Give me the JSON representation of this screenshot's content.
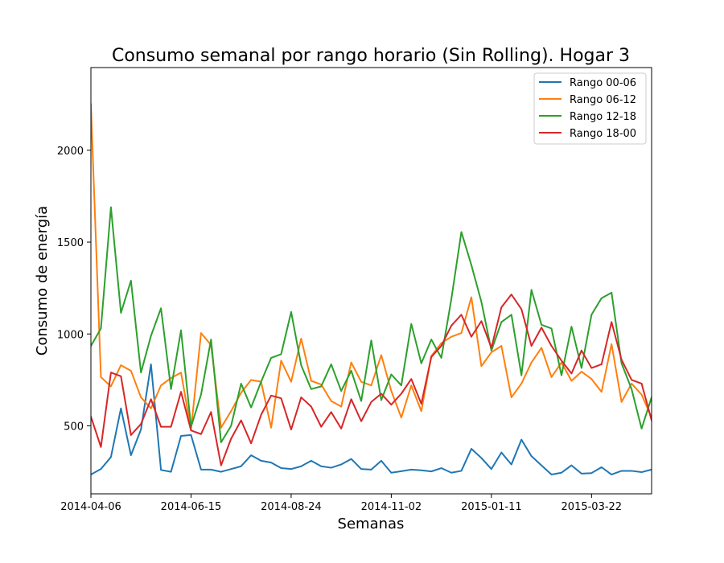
{
  "chart_data": {
    "type": "line",
    "title": "Consumo semanal por rango horario (Sin Rolling). Hogar 3",
    "xlabel": "Semanas",
    "ylabel": "Consumo de energía",
    "x_start": "2014-04-06",
    "x_step_days": 7,
    "x_ticks": [
      "2014-04-06",
      "2014-06-15",
      "2014-08-24",
      "2014-11-02",
      "2015-01-11",
      "2015-03-22"
    ],
    "x_tick_indices": [
      0,
      10,
      20,
      30,
      40,
      50
    ],
    "y_ticks": [
      500,
      1000,
      1500,
      2000
    ],
    "ylim": [
      130,
      2450
    ],
    "xlim": [
      0,
      56
    ],
    "grid": false,
    "legend_position": "top-right",
    "series": [
      {
        "name": "Rango 00-06",
        "color": "#1f77b4",
        "values": [
          235,
          265,
          330,
          595,
          340,
          480,
          835,
          260,
          250,
          445,
          450,
          262,
          262,
          250,
          265,
          280,
          340,
          310,
          300,
          270,
          265,
          280,
          310,
          280,
          272,
          290,
          320,
          265,
          262,
          310,
          245,
          253,
          262,
          258,
          252,
          270,
          245,
          255,
          375,
          325,
          265,
          355,
          290,
          425,
          335,
          285,
          235,
          245,
          285,
          240,
          243,
          275,
          235,
          255,
          255,
          248,
          262
        ]
      },
      {
        "name": "Rango 06-12",
        "color": "#ff7f0e",
        "values": [
          2250,
          765,
          715,
          830,
          800,
          655,
          595,
          720,
          760,
          790,
          480,
          1005,
          940,
          490,
          580,
          680,
          750,
          740,
          490,
          855,
          740,
          975,
          745,
          725,
          635,
          605,
          845,
          740,
          720,
          885,
          690,
          545,
          720,
          580,
          880,
          950,
          985,
          1005,
          1200,
          825,
          900,
          935,
          655,
          730,
          845,
          925,
          765,
          845,
          745,
          795,
          755,
          685,
          945,
          630,
          730,
          670,
          545
        ]
      },
      {
        "name": "Rango 12-18",
        "color": "#2ca02c",
        "values": [
          935,
          1030,
          1690,
          1115,
          1290,
          790,
          990,
          1140,
          700,
          1020,
          495,
          670,
          970,
          410,
          500,
          730,
          600,
          740,
          870,
          890,
          1120,
          830,
          700,
          715,
          835,
          690,
          800,
          635,
          965,
          640,
          780,
          720,
          1055,
          840,
          970,
          870,
          1190,
          1555,
          1375,
          1175,
          910,
          1065,
          1105,
          775,
          1240,
          1050,
          1030,
          775,
          1040,
          815,
          1105,
          1195,
          1225,
          840,
          700,
          485,
          655
        ]
      },
      {
        "name": "Rango 18-00",
        "color": "#d62728",
        "values": [
          550,
          385,
          790,
          770,
          450,
          510,
          645,
          495,
          495,
          685,
          475,
          455,
          575,
          285,
          430,
          530,
          405,
          560,
          665,
          650,
          480,
          655,
          605,
          495,
          575,
          485,
          645,
          525,
          630,
          675,
          615,
          675,
          755,
          620,
          875,
          935,
          1045,
          1105,
          985,
          1070,
          925,
          1145,
          1215,
          1135,
          935,
          1035,
          935,
          855,
          785,
          910,
          815,
          835,
          1065,
          860,
          750,
          730,
          530
        ]
      }
    ]
  }
}
